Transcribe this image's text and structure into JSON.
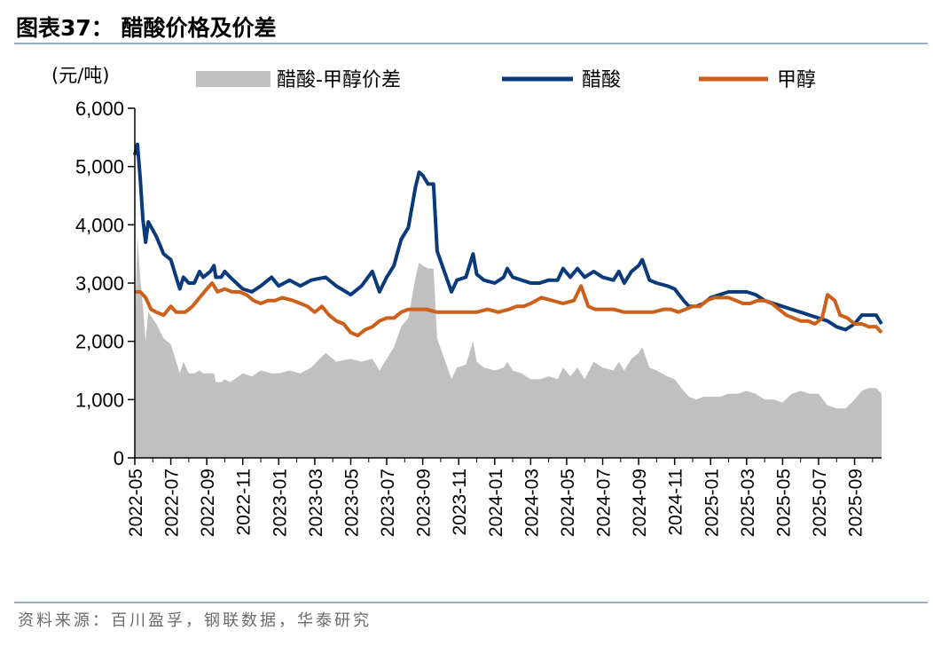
{
  "header": {
    "title": "图表37：  醋酸价格及价差",
    "source": "资料来源：百川盈孚，钢联数据，华泰研究"
  },
  "colors": {
    "spread": "#c0c0c0",
    "acetic": "#0a3a7a",
    "methanol": "#cc5f1a"
  },
  "chart_data": {
    "type": "line",
    "unit_label": "(元/吨)",
    "ylim": [
      0,
      6000
    ],
    "yticks": [
      "0",
      "1,000",
      "2,000",
      "3,000",
      "4,000",
      "5,000",
      "6,000"
    ],
    "xlim": [
      0,
      41.5
    ],
    "xtick_labels": [
      "2022-05",
      "2022-07",
      "2022-09",
      "2022-11",
      "2023-01",
      "2023-03",
      "2023-05",
      "2023-07",
      "2023-09",
      "2023-11",
      "2024-01",
      "2024-03",
      "2024-05",
      "2024-07",
      "2024-09",
      "2024-11",
      "2025-01",
      "2025-03",
      "2025-05",
      "2025-07",
      "2025-09"
    ],
    "legend": [
      "醋酸-甲醇价差",
      "醋酸",
      "甲醇"
    ],
    "series": [
      {
        "name": "醋酸",
        "type": "line",
        "points": [
          [
            0,
            5200
          ],
          [
            0.15,
            5380
          ],
          [
            0.3,
            4800
          ],
          [
            0.45,
            4100
          ],
          [
            0.6,
            3700
          ],
          [
            0.75,
            4050
          ],
          [
            1.2,
            3800
          ],
          [
            1.6,
            3500
          ],
          [
            2.0,
            3400
          ],
          [
            2.5,
            2900
          ],
          [
            2.7,
            3100
          ],
          [
            3.0,
            3000
          ],
          [
            3.3,
            3000
          ],
          [
            3.6,
            3200
          ],
          [
            3.8,
            3100
          ],
          [
            4.2,
            3200
          ],
          [
            4.4,
            3300
          ],
          [
            4.5,
            3100
          ],
          [
            4.8,
            3100
          ],
          [
            5.0,
            3200
          ],
          [
            5.3,
            3100
          ],
          [
            6.0,
            2900
          ],
          [
            6.5,
            2850
          ],
          [
            7.0,
            2950
          ],
          [
            7.6,
            3100
          ],
          [
            8.0,
            2950
          ],
          [
            8.6,
            3050
          ],
          [
            9.2,
            2950
          ],
          [
            9.8,
            3050
          ],
          [
            10.6,
            3100
          ],
          [
            11.2,
            2950
          ],
          [
            12.0,
            2800
          ],
          [
            12.6,
            2950
          ],
          [
            13.2,
            3200
          ],
          [
            13.6,
            2850
          ],
          [
            14.0,
            3100
          ],
          [
            14.4,
            3300
          ],
          [
            14.8,
            3750
          ],
          [
            15.2,
            3950
          ],
          [
            15.6,
            4650
          ],
          [
            15.8,
            4900
          ],
          [
            16.0,
            4850
          ],
          [
            16.3,
            4700
          ],
          [
            16.6,
            4700
          ],
          [
            16.8,
            3550
          ],
          [
            17.2,
            3200
          ],
          [
            17.6,
            2850
          ],
          [
            17.9,
            3050
          ],
          [
            18.4,
            3100
          ],
          [
            18.8,
            3500
          ],
          [
            19.0,
            3150
          ],
          [
            19.4,
            3050
          ],
          [
            20.0,
            3000
          ],
          [
            20.5,
            3100
          ],
          [
            20.7,
            3250
          ],
          [
            21.0,
            3100
          ],
          [
            21.5,
            3050
          ],
          [
            22.0,
            3000
          ],
          [
            22.5,
            3000
          ],
          [
            23.0,
            3050
          ],
          [
            23.5,
            3050
          ],
          [
            23.8,
            3250
          ],
          [
            24.2,
            3100
          ],
          [
            24.6,
            3250
          ],
          [
            25.0,
            3100
          ],
          [
            25.5,
            3200
          ],
          [
            26.0,
            3100
          ],
          [
            26.6,
            3050
          ],
          [
            26.9,
            3200
          ],
          [
            27.2,
            3000
          ],
          [
            27.6,
            3200
          ],
          [
            28.0,
            3300
          ],
          [
            28.2,
            3400
          ],
          [
            28.6,
            3050
          ],
          [
            29.0,
            3000
          ],
          [
            29.6,
            2950
          ],
          [
            30.0,
            2900
          ],
          [
            30.5,
            2700
          ],
          [
            30.8,
            2600
          ],
          [
            31.2,
            2600
          ],
          [
            31.6,
            2650
          ],
          [
            32.0,
            2750
          ],
          [
            32.5,
            2800
          ],
          [
            33.0,
            2850
          ],
          [
            33.5,
            2850
          ],
          [
            34.0,
            2850
          ],
          [
            34.5,
            2800
          ],
          [
            35.0,
            2700
          ],
          [
            35.5,
            2650
          ],
          [
            36.0,
            2600
          ],
          [
            36.5,
            2550
          ],
          [
            37.0,
            2500
          ],
          [
            37.5,
            2450
          ],
          [
            38.0,
            2400
          ],
          [
            38.5,
            2350
          ],
          [
            39.0,
            2250
          ],
          [
            39.5,
            2200
          ],
          [
            40.0,
            2300
          ],
          [
            40.4,
            2450
          ],
          [
            40.8,
            2450
          ],
          [
            41.2,
            2450
          ],
          [
            41.5,
            2300
          ]
        ]
      },
      {
        "name": "甲醇",
        "type": "line",
        "points": [
          [
            0,
            2850
          ],
          [
            0.3,
            2850
          ],
          [
            0.6,
            2750
          ],
          [
            0.9,
            2550
          ],
          [
            1.2,
            2500
          ],
          [
            1.6,
            2450
          ],
          [
            2.0,
            2600
          ],
          [
            2.3,
            2500
          ],
          [
            2.8,
            2500
          ],
          [
            3.2,
            2600
          ],
          [
            3.6,
            2750
          ],
          [
            4.0,
            2900
          ],
          [
            4.3,
            3000
          ],
          [
            4.6,
            2850
          ],
          [
            5.0,
            2900
          ],
          [
            5.4,
            2850
          ],
          [
            5.8,
            2850
          ],
          [
            6.2,
            2800
          ],
          [
            6.6,
            2700
          ],
          [
            7.0,
            2650
          ],
          [
            7.4,
            2700
          ],
          [
            7.8,
            2700
          ],
          [
            8.2,
            2750
          ],
          [
            8.8,
            2700
          ],
          [
            9.2,
            2650
          ],
          [
            9.6,
            2600
          ],
          [
            10.0,
            2500
          ],
          [
            10.4,
            2600
          ],
          [
            10.8,
            2450
          ],
          [
            11.2,
            2350
          ],
          [
            11.6,
            2300
          ],
          [
            12.0,
            2150
          ],
          [
            12.4,
            2100
          ],
          [
            12.8,
            2200
          ],
          [
            13.2,
            2250
          ],
          [
            13.6,
            2350
          ],
          [
            14.0,
            2400
          ],
          [
            14.4,
            2400
          ],
          [
            14.8,
            2500
          ],
          [
            15.2,
            2550
          ],
          [
            15.6,
            2550
          ],
          [
            16.2,
            2550
          ],
          [
            16.8,
            2500
          ],
          [
            17.6,
            2500
          ],
          [
            18.4,
            2500
          ],
          [
            19.0,
            2500
          ],
          [
            19.6,
            2550
          ],
          [
            20.2,
            2500
          ],
          [
            20.8,
            2550
          ],
          [
            21.2,
            2600
          ],
          [
            21.6,
            2600
          ],
          [
            22.0,
            2650
          ],
          [
            22.6,
            2750
          ],
          [
            23.2,
            2700
          ],
          [
            23.8,
            2650
          ],
          [
            24.4,
            2700
          ],
          [
            24.8,
            2950
          ],
          [
            25.2,
            2600
          ],
          [
            25.6,
            2550
          ],
          [
            26.0,
            2550
          ],
          [
            26.6,
            2550
          ],
          [
            27.2,
            2500
          ],
          [
            27.6,
            2500
          ],
          [
            28.2,
            2500
          ],
          [
            28.8,
            2500
          ],
          [
            29.4,
            2550
          ],
          [
            29.8,
            2550
          ],
          [
            30.2,
            2500
          ],
          [
            30.6,
            2550
          ],
          [
            31.0,
            2600
          ],
          [
            31.4,
            2600
          ],
          [
            31.8,
            2700
          ],
          [
            32.2,
            2750
          ],
          [
            32.6,
            2750
          ],
          [
            33.0,
            2750
          ],
          [
            33.4,
            2700
          ],
          [
            33.8,
            2650
          ],
          [
            34.2,
            2650
          ],
          [
            34.6,
            2700
          ],
          [
            35.0,
            2700
          ],
          [
            35.4,
            2650
          ],
          [
            35.8,
            2550
          ],
          [
            36.2,
            2450
          ],
          [
            36.6,
            2400
          ],
          [
            37.0,
            2350
          ],
          [
            37.4,
            2350
          ],
          [
            37.8,
            2300
          ],
          [
            38.2,
            2400
          ],
          [
            38.5,
            2800
          ],
          [
            38.9,
            2700
          ],
          [
            39.2,
            2450
          ],
          [
            39.6,
            2400
          ],
          [
            40.0,
            2300
          ],
          [
            40.4,
            2300
          ],
          [
            40.8,
            2250
          ],
          [
            41.2,
            2250
          ],
          [
            41.5,
            2150
          ]
        ]
      },
      {
        "name": "醋酸-甲醇价差",
        "type": "area",
        "points": [
          [
            0,
            2350
          ],
          [
            0.15,
            3800
          ],
          [
            0.3,
            3100
          ],
          [
            0.45,
            2600
          ],
          [
            0.6,
            2000
          ],
          [
            0.75,
            2500
          ],
          [
            1.2,
            2300
          ],
          [
            1.6,
            2050
          ],
          [
            2.0,
            1950
          ],
          [
            2.5,
            1450
          ],
          [
            2.7,
            1650
          ],
          [
            3.0,
            1450
          ],
          [
            3.3,
            1450
          ],
          [
            3.6,
            1500
          ],
          [
            3.8,
            1450
          ],
          [
            4.2,
            1450
          ],
          [
            4.4,
            1450
          ],
          [
            4.5,
            1300
          ],
          [
            4.8,
            1300
          ],
          [
            5.0,
            1350
          ],
          [
            5.3,
            1300
          ],
          [
            6.0,
            1450
          ],
          [
            6.5,
            1400
          ],
          [
            7.0,
            1500
          ],
          [
            7.6,
            1450
          ],
          [
            8.0,
            1450
          ],
          [
            8.6,
            1500
          ],
          [
            9.2,
            1450
          ],
          [
            9.8,
            1550
          ],
          [
            10.6,
            1800
          ],
          [
            11.2,
            1650
          ],
          [
            12.0,
            1700
          ],
          [
            12.6,
            1650
          ],
          [
            13.2,
            1700
          ],
          [
            13.6,
            1500
          ],
          [
            14.0,
            1700
          ],
          [
            14.4,
            1900
          ],
          [
            14.8,
            2250
          ],
          [
            15.2,
            2400
          ],
          [
            15.6,
            3100
          ],
          [
            15.8,
            3350
          ],
          [
            16.0,
            3300
          ],
          [
            16.3,
            3250
          ],
          [
            16.6,
            3250
          ],
          [
            16.8,
            2050
          ],
          [
            17.2,
            1700
          ],
          [
            17.6,
            1350
          ],
          [
            17.9,
            1550
          ],
          [
            18.4,
            1600
          ],
          [
            18.8,
            2000
          ],
          [
            19.0,
            1650
          ],
          [
            19.4,
            1550
          ],
          [
            20.0,
            1500
          ],
          [
            20.5,
            1550
          ],
          [
            20.7,
            1650
          ],
          [
            21.0,
            1500
          ],
          [
            21.5,
            1450
          ],
          [
            22.0,
            1350
          ],
          [
            22.5,
            1350
          ],
          [
            23.0,
            1400
          ],
          [
            23.5,
            1350
          ],
          [
            23.8,
            1550
          ],
          [
            24.2,
            1400
          ],
          [
            24.6,
            1550
          ],
          [
            25.0,
            1350
          ],
          [
            25.5,
            1650
          ],
          [
            26.0,
            1550
          ],
          [
            26.6,
            1500
          ],
          [
            26.9,
            1650
          ],
          [
            27.2,
            1500
          ],
          [
            27.6,
            1700
          ],
          [
            28.0,
            1800
          ],
          [
            28.2,
            1900
          ],
          [
            28.6,
            1550
          ],
          [
            29.0,
            1500
          ],
          [
            29.6,
            1400
          ],
          [
            30.0,
            1350
          ],
          [
            30.5,
            1150
          ],
          [
            30.8,
            1050
          ],
          [
            31.2,
            1000
          ],
          [
            31.6,
            1050
          ],
          [
            32.0,
            1050
          ],
          [
            32.5,
            1050
          ],
          [
            33.0,
            1100
          ],
          [
            33.5,
            1100
          ],
          [
            34.0,
            1150
          ],
          [
            34.5,
            1100
          ],
          [
            35.0,
            1000
          ],
          [
            35.5,
            1000
          ],
          [
            36.0,
            950
          ],
          [
            36.5,
            1100
          ],
          [
            37.0,
            1150
          ],
          [
            37.5,
            1100
          ],
          [
            38.0,
            1100
          ],
          [
            38.5,
            900
          ],
          [
            39.0,
            850
          ],
          [
            39.5,
            850
          ],
          [
            40.0,
            1000
          ],
          [
            40.4,
            1150
          ],
          [
            40.8,
            1200
          ],
          [
            41.2,
            1200
          ],
          [
            41.5,
            1100
          ]
        ]
      }
    ]
  }
}
